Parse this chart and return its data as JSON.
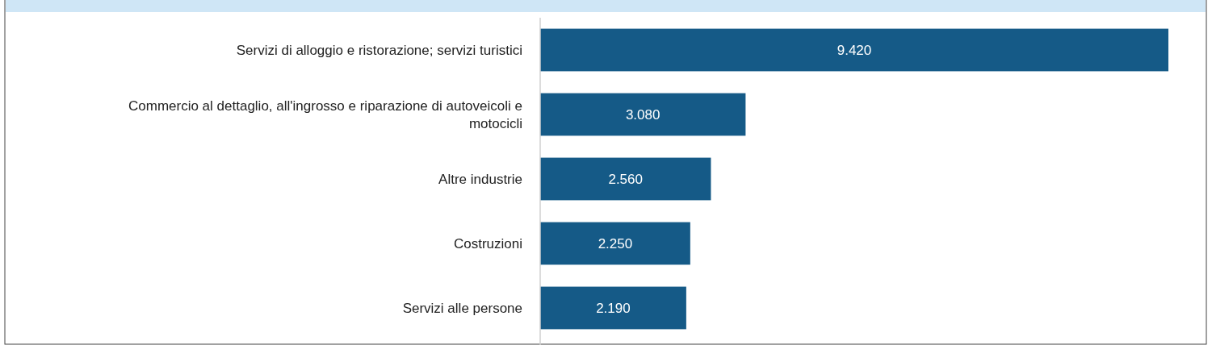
{
  "chart_data": {
    "type": "bar",
    "orientation": "horizontal",
    "categories": [
      "Servizi di alloggio e ristorazione; servizi turistici",
      "Commercio al dettaglio, all'ingrosso e riparazione di autoveicoli e motocicli",
      "Altre industrie",
      "Costruzioni",
      "Servizi alle persone"
    ],
    "values": [
      9420,
      3080,
      2560,
      2250,
      2190
    ],
    "value_labels": [
      "9.420",
      "3.080",
      "2.560",
      "2.250",
      "2.190"
    ],
    "color": "#155a87"
  }
}
